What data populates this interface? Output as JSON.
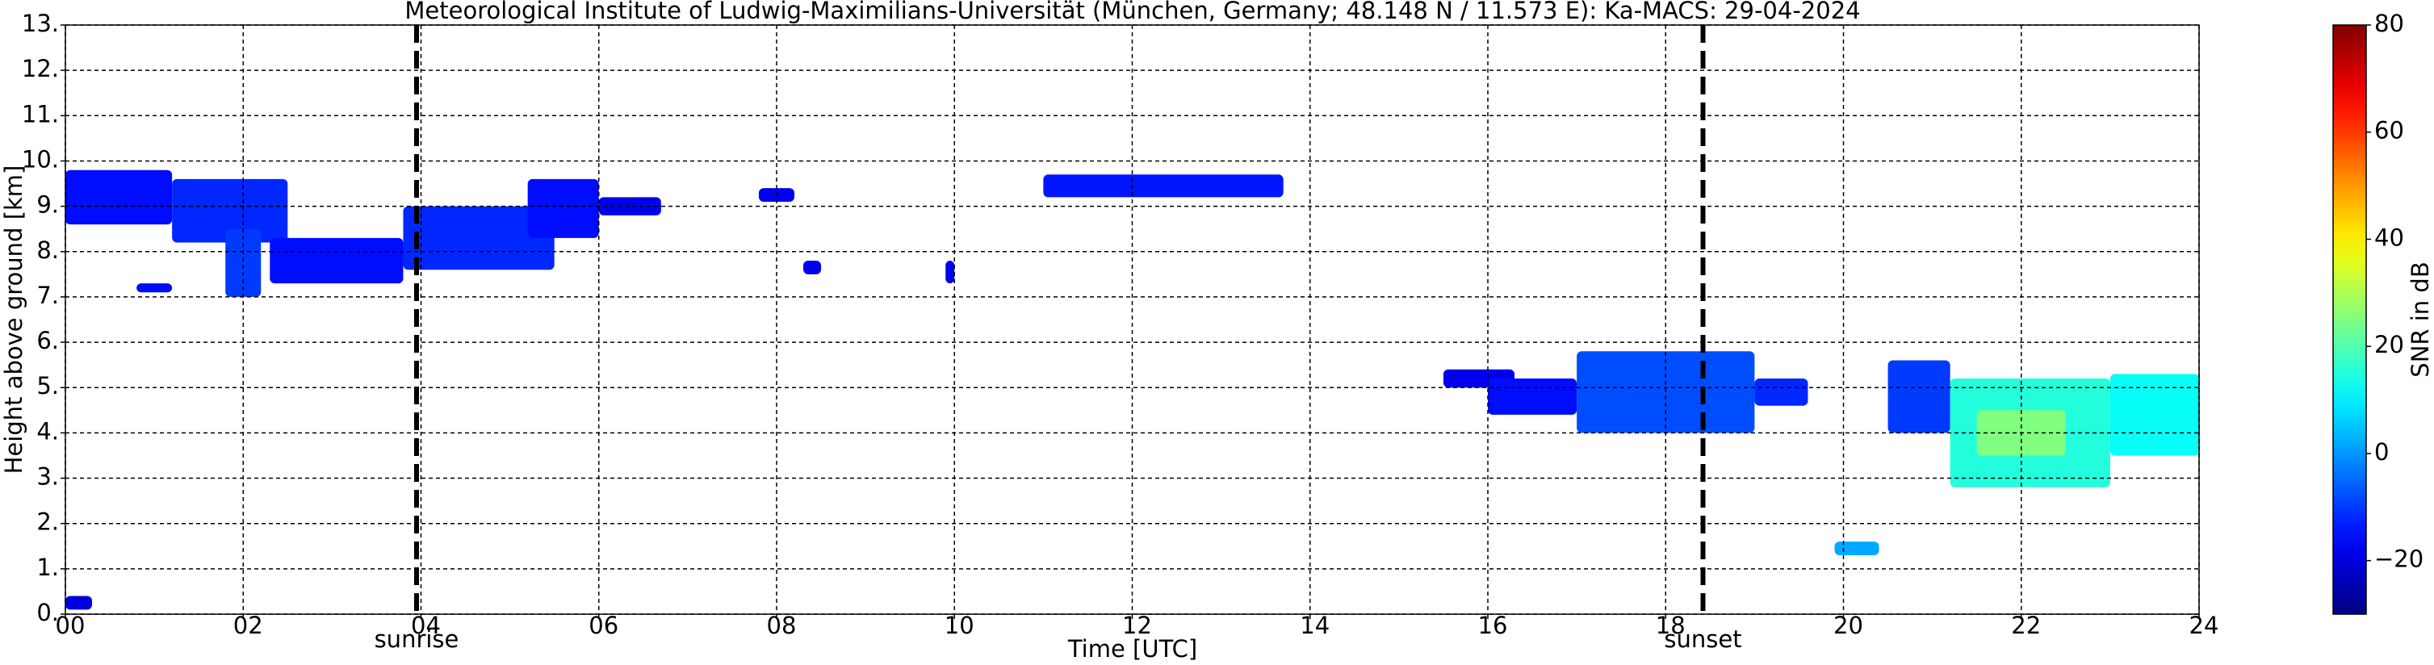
{
  "chart_data": {
    "type": "time-height",
    "title": "Meteorological Institute of Ludwig-Maximilians-Universität (München, Germany; 48.148 N / 11.573 E):    Ka-MACS: 29-04-2024",
    "xlabel": "Time [UTC]",
    "ylabel": "Height above ground [km]",
    "xlim": [
      0,
      24
    ],
    "xticks": [
      {
        "value": 0,
        "label": "00"
      },
      {
        "value": 2,
        "label": "02"
      },
      {
        "value": 4,
        "label": "04"
      },
      {
        "value": 6,
        "label": "06"
      },
      {
        "value": 8,
        "label": "08"
      },
      {
        "value": 10,
        "label": "10"
      },
      {
        "value": 12,
        "label": "12"
      },
      {
        "value": 14,
        "label": "14"
      },
      {
        "value": 16,
        "label": "16"
      },
      {
        "value": 18,
        "label": "18"
      },
      {
        "value": 20,
        "label": "20"
      },
      {
        "value": 22,
        "label": "22"
      },
      {
        "value": 24,
        "label": "24"
      }
    ],
    "ylim": [
      0,
      13
    ],
    "yticks": [
      {
        "value": 0,
        "label": "0."
      },
      {
        "value": 1,
        "label": "1."
      },
      {
        "value": 2,
        "label": "2."
      },
      {
        "value": 3,
        "label": "3."
      },
      {
        "value": 4,
        "label": "4."
      },
      {
        "value": 5,
        "label": "5."
      },
      {
        "value": 6,
        "label": "6."
      },
      {
        "value": 7,
        "label": "7."
      },
      {
        "value": 8,
        "label": "8."
      },
      {
        "value": 9,
        "label": "9."
      },
      {
        "value": 10,
        "label": "10."
      },
      {
        "value": 11,
        "label": "11."
      },
      {
        "value": 12,
        "label": "12."
      },
      {
        "value": 13,
        "label": "13."
      }
    ],
    "grid": true,
    "colorbar": {
      "label": "SNR in dB",
      "colormap": "jet",
      "lim": [
        -30,
        80
      ],
      "ticks": [
        {
          "value": -20,
          "label": "−20"
        },
        0,
        20,
        40,
        60,
        80
      ]
    },
    "markers": [
      {
        "x": 3.95,
        "label": "sunrise"
      },
      {
        "x": 18.42,
        "label": "sunset"
      }
    ],
    "echoes": [
      {
        "x": [
          0.0,
          1.2
        ],
        "y": [
          8.6,
          9.8
        ],
        "snr": -15
      },
      {
        "x": [
          1.2,
          2.5
        ],
        "y": [
          8.2,
          9.6
        ],
        "snr": -12
      },
      {
        "x": [
          1.8,
          2.2
        ],
        "y": [
          7.0,
          8.5
        ],
        "snr": -10
      },
      {
        "x": [
          2.3,
          3.8
        ],
        "y": [
          7.3,
          8.3
        ],
        "snr": -15
      },
      {
        "x": [
          0.8,
          1.2
        ],
        "y": [
          7.1,
          7.3
        ],
        "snr": -15
      },
      {
        "x": [
          3.8,
          5.5
        ],
        "y": [
          7.6,
          9.0
        ],
        "snr": -12
      },
      {
        "x": [
          5.2,
          6.0
        ],
        "y": [
          8.3,
          9.6
        ],
        "snr": -15
      },
      {
        "x": [
          6.0,
          6.7
        ],
        "y": [
          8.8,
          9.2
        ],
        "snr": -18
      },
      {
        "x": [
          7.8,
          8.2
        ],
        "y": [
          9.1,
          9.4
        ],
        "snr": -18
      },
      {
        "x": [
          8.3,
          8.5
        ],
        "y": [
          7.5,
          7.8
        ],
        "snr": -18
      },
      {
        "x": [
          9.9,
          10.0
        ],
        "y": [
          7.3,
          7.8
        ],
        "snr": -18
      },
      {
        "x": [
          11.0,
          13.7
        ],
        "y": [
          9.2,
          9.7
        ],
        "snr": -14
      },
      {
        "x": [
          15.5,
          16.3
        ],
        "y": [
          5.0,
          5.4
        ],
        "snr": -18
      },
      {
        "x": [
          16.0,
          17.0
        ],
        "y": [
          4.4,
          5.2
        ],
        "snr": -15
      },
      {
        "x": [
          17.0,
          19.0
        ],
        "y": [
          4.0,
          5.8
        ],
        "snr": -8
      },
      {
        "x": [
          19.0,
          19.6
        ],
        "y": [
          4.6,
          5.2
        ],
        "snr": -12
      },
      {
        "x": [
          19.9,
          20.4
        ],
        "y": [
          1.3,
          1.6
        ],
        "snr": 2
      },
      {
        "x": [
          20.5,
          21.2
        ],
        "y": [
          4.0,
          5.6
        ],
        "snr": -10
      },
      {
        "x": [
          21.2,
          23.0
        ],
        "y": [
          2.8,
          5.2
        ],
        "snr": 15
      },
      {
        "x": [
          23.0,
          24.0
        ],
        "y": [
          3.5,
          5.3
        ],
        "snr": 12
      },
      {
        "x": [
          21.5,
          22.5
        ],
        "y": [
          3.5,
          4.5
        ],
        "snr": 25
      },
      {
        "x": [
          0.0,
          0.3
        ],
        "y": [
          0.1,
          0.4
        ],
        "snr": -20
      }
    ]
  }
}
